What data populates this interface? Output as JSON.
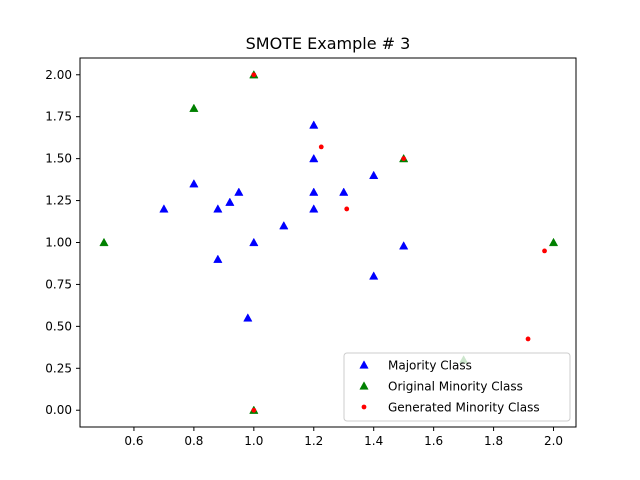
{
  "chart_data": {
    "type": "scatter",
    "title": "SMOTE Example # 3",
    "xlabel": "",
    "ylabel": "",
    "xlim": [
      0.42,
      2.075
    ],
    "ylim": [
      -0.1,
      2.1
    ],
    "xticks": [
      0.6,
      0.8,
      1.0,
      1.2,
      1.4,
      1.6,
      1.8,
      2.0
    ],
    "xtick_labels": [
      "0.6",
      "0.8",
      "1.0",
      "1.2",
      "1.4",
      "1.6",
      "1.8",
      "2.0"
    ],
    "yticks": [
      0.0,
      0.25,
      0.5,
      0.75,
      1.0,
      1.25,
      1.5,
      1.75,
      2.0
    ],
    "ytick_labels": [
      "0.00",
      "0.25",
      "0.50",
      "0.75",
      "1.00",
      "1.25",
      "1.50",
      "1.75",
      "2.00"
    ],
    "grid": false,
    "legend_position": "lower-right",
    "series": [
      {
        "name": "Majority Class",
        "color": "#0000ff",
        "marker": "triangle",
        "points": [
          [
            0.7,
            1.2
          ],
          [
            0.8,
            1.35
          ],
          [
            0.88,
            1.2
          ],
          [
            0.88,
            0.9
          ],
          [
            0.92,
            1.24
          ],
          [
            0.95,
            1.3
          ],
          [
            0.98,
            0.55
          ],
          [
            1.0,
            1.0
          ],
          [
            1.1,
            1.1
          ],
          [
            1.2,
            1.7
          ],
          [
            1.2,
            1.5
          ],
          [
            1.2,
            1.3
          ],
          [
            1.2,
            1.2
          ],
          [
            1.3,
            1.3
          ],
          [
            1.4,
            1.4
          ],
          [
            1.4,
            0.8
          ],
          [
            1.5,
            0.98
          ]
        ]
      },
      {
        "name": "Original Minority Class",
        "color": "#008000",
        "marker": "triangle",
        "points": [
          [
            0.5,
            1.0
          ],
          [
            0.8,
            1.8
          ],
          [
            1.0,
            2.0
          ],
          [
            1.0,
            0.0
          ],
          [
            1.5,
            1.5
          ],
          [
            2.0,
            1.0
          ],
          [
            1.7,
            0.3
          ]
        ]
      },
      {
        "name": "Generated Minority Class",
        "color": "#ff0000",
        "marker": "dot",
        "points": [
          [
            1.0,
            2.0
          ],
          [
            1.0,
            0.0
          ],
          [
            1.5,
            1.5
          ],
          [
            1.225,
            1.57
          ],
          [
            1.31,
            1.2
          ],
          [
            1.97,
            0.95
          ],
          [
            1.915,
            0.425
          ]
        ]
      }
    ]
  }
}
